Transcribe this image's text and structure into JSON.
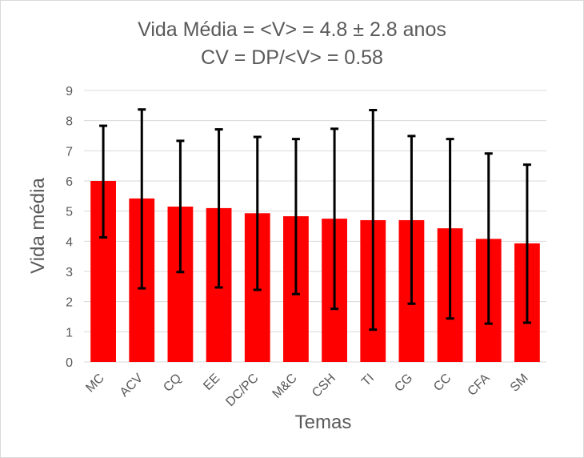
{
  "chart_data": {
    "type": "bar",
    "title_line1": "Vida Média = <V> = 4.8 ± 2.8 anos",
    "title_line2": "CV = DP/<V> = 0.58",
    "xlabel": "Temas",
    "ylabel": "Vida média",
    "ylim": [
      0,
      9
    ],
    "yticks": [
      "0",
      "1",
      "2",
      "3",
      "4",
      "5",
      "6",
      "7",
      "8",
      "9"
    ],
    "grid": true,
    "legend": "none",
    "categories": [
      "MC",
      "ACV",
      "CQ",
      "EE",
      "DC/PC",
      "M&C",
      "CSH",
      "TI",
      "CG",
      "CC",
      "CFA",
      "SM"
    ],
    "series": [
      {
        "values": [
          6.0,
          5.42,
          5.15,
          5.1,
          4.93,
          4.83,
          4.75,
          4.7,
          4.7,
          4.43,
          4.08,
          3.93
        ],
        "error_low": [
          4.13,
          2.44,
          2.98,
          2.47,
          2.39,
          2.25,
          1.76,
          1.07,
          1.93,
          1.44,
          1.27,
          1.3
        ],
        "error_high": [
          7.83,
          8.37,
          7.33,
          7.71,
          7.46,
          7.39,
          7.73,
          8.35,
          7.49,
          7.39,
          6.91,
          6.54
        ]
      }
    ],
    "colors": {
      "bar": "#ff0000",
      "error_bar": "#000000",
      "grid": "#d9d9d9",
      "text": "#595959"
    }
  }
}
